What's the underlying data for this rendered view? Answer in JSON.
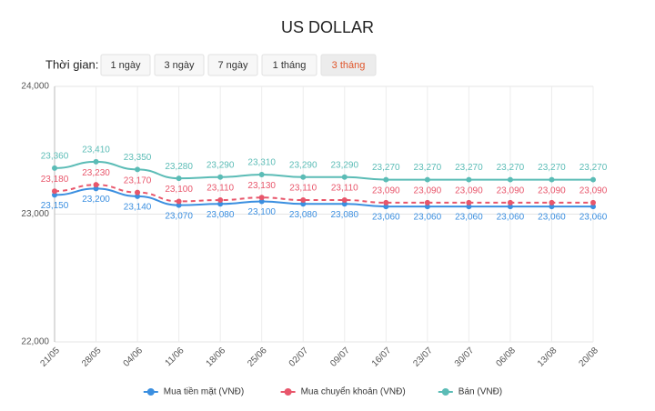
{
  "controls": {
    "label": "Thời gian:",
    "options": [
      "1 ngày",
      "3 ngày",
      "7 ngày",
      "1 tháng",
      "3 tháng"
    ],
    "selected": 4,
    "selected_color": "#e0562b"
  },
  "chart_data": {
    "type": "line",
    "title": "US DOLLAR",
    "categories": [
      "21/05",
      "28/05",
      "04/06",
      "11/06",
      "18/06",
      "25/06",
      "02/07",
      "09/07",
      "16/07",
      "23/07",
      "30/07",
      "06/08",
      "13/08",
      "20/08"
    ],
    "series": [
      {
        "name": "Mua tiền mặt (VNĐ)",
        "color": "#3b8fe0",
        "dashed": false,
        "label_position": "below",
        "values": [
          23150,
          23200,
          23140,
          23070,
          23080,
          23100,
          23080,
          23080,
          23060,
          23060,
          23060,
          23060,
          23060,
          23060
        ],
        "value_labels": [
          "23,150",
          "23,200",
          "23,140",
          "23,070",
          "23,080",
          "23,100",
          "23,080",
          "23,080",
          "23,060",
          "23,060",
          "23,060",
          "23,060",
          "23,060",
          "23,060"
        ]
      },
      {
        "name": "Mua chuyển khoản (VNĐ)",
        "color": "#e8566b",
        "dashed": true,
        "label_position": "above",
        "values": [
          23180,
          23230,
          23170,
          23100,
          23110,
          23130,
          23110,
          23110,
          23090,
          23090,
          23090,
          23090,
          23090,
          23090
        ],
        "value_labels": [
          "23,180",
          "23,230",
          "23,170",
          "23,100",
          "23,110",
          "23,130",
          "23,110",
          "23,110",
          "23,090",
          "23,090",
          "23,090",
          "23,090",
          "23,090",
          "23,090"
        ]
      },
      {
        "name": "Bán (VNĐ)",
        "color": "#5bbcb6",
        "dashed": false,
        "label_position": "above",
        "values": [
          23360,
          23410,
          23350,
          23280,
          23290,
          23310,
          23290,
          23290,
          23270,
          23270,
          23270,
          23270,
          23270,
          23270
        ],
        "value_labels": [
          "23,360",
          "23,410",
          "23,350",
          "23,280",
          "23,290",
          "23,310",
          "23,290",
          "23,290",
          "23,270",
          "23,270",
          "23,270",
          "23,270",
          "23,270",
          "23,270"
        ]
      }
    ],
    "ylim": [
      22000,
      24000
    ],
    "yticks": [
      {
        "value": 22000,
        "label": "22,000"
      },
      {
        "value": 23000,
        "label": "23,000"
      },
      {
        "value": 24000,
        "label": "24,000"
      }
    ],
    "grid": true,
    "legend": "bottom"
  }
}
